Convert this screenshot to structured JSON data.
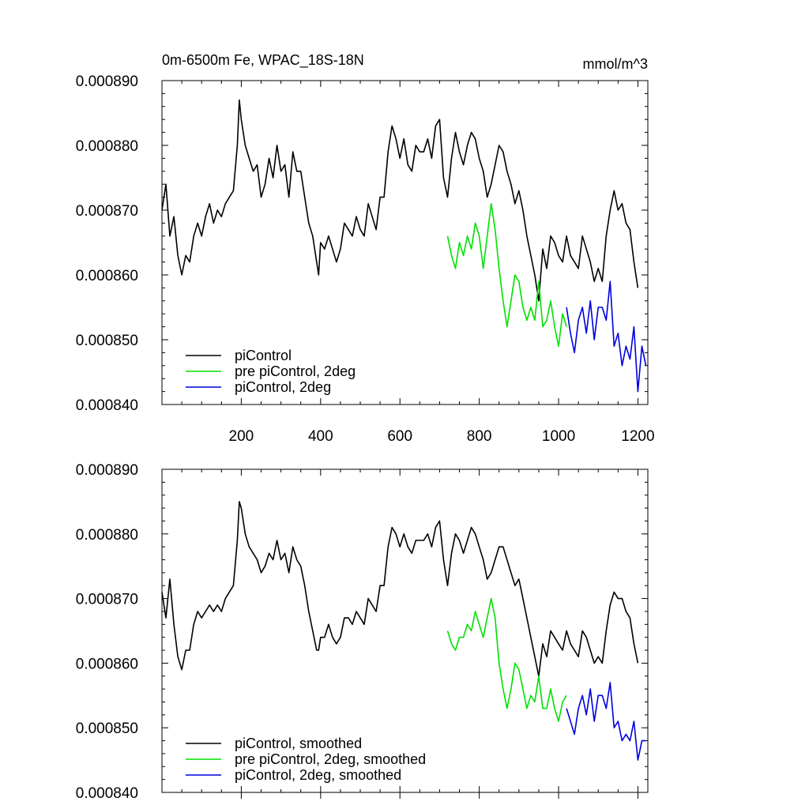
{
  "chart_data": [
    {
      "type": "line",
      "title": "0m-6500m Fe, WPAC_18S-18N",
      "units": "mmol/m^3",
      "xlim": [
        0,
        1225
      ],
      "ylim": [
        0.00084,
        0.00089
      ],
      "yticks": [
        "0.000840",
        "0.000850",
        "0.000860",
        "0.000870",
        "0.000880",
        "0.000890"
      ],
      "xticks": [
        "200",
        "400",
        "600",
        "800",
        "1000",
        "1200"
      ],
      "legend_position": "bottom-left",
      "series": [
        {
          "name": "piControl",
          "color": "#000000",
          "x": [
            0,
            10,
            20,
            30,
            40,
            50,
            60,
            70,
            80,
            90,
            100,
            110,
            120,
            130,
            140,
            150,
            160,
            170,
            180,
            190,
            195,
            200,
            210,
            220,
            230,
            240,
            250,
            260,
            270,
            280,
            290,
            300,
            310,
            320,
            330,
            340,
            350,
            360,
            370,
            380,
            390,
            395,
            400,
            410,
            420,
            430,
            440,
            450,
            460,
            470,
            480,
            490,
            500,
            510,
            520,
            530,
            540,
            550,
            560,
            570,
            580,
            590,
            600,
            610,
            620,
            630,
            640,
            650,
            660,
            670,
            680,
            690,
            700,
            710,
            720,
            730,
            740,
            750,
            760,
            770,
            780,
            790,
            800,
            810,
            820,
            830,
            840,
            850,
            860,
            870,
            880,
            890,
            900,
            910,
            920,
            930,
            940,
            950,
            960,
            970,
            980,
            990,
            1000,
            1010,
            1020,
            1030,
            1040,
            1050,
            1060,
            1070,
            1080,
            1090,
            1100,
            1110,
            1120,
            1130,
            1140,
            1150,
            1160,
            1170,
            1180,
            1190,
            1200
          ],
          "y": [
            0.00087,
            0.000874,
            0.000866,
            0.000869,
            0.000863,
            0.00086,
            0.000863,
            0.000862,
            0.000866,
            0.000868,
            0.000866,
            0.000869,
            0.000871,
            0.000868,
            0.00087,
            0.000869,
            0.000871,
            0.000872,
            0.000873,
            0.00088,
            0.000887,
            0.000884,
            0.00088,
            0.000878,
            0.000876,
            0.000877,
            0.000872,
            0.000874,
            0.000878,
            0.000875,
            0.00088,
            0.000876,
            0.000877,
            0.000872,
            0.000879,
            0.000876,
            0.000876,
            0.000872,
            0.000868,
            0.000866,
            0.000862,
            0.00086,
            0.000865,
            0.000864,
            0.000866,
            0.000864,
            0.000862,
            0.000864,
            0.000868,
            0.000867,
            0.000866,
            0.000869,
            0.000867,
            0.000866,
            0.000871,
            0.000869,
            0.000867,
            0.000872,
            0.000872,
            0.000879,
            0.000883,
            0.000881,
            0.000878,
            0.000881,
            0.000877,
            0.000876,
            0.00088,
            0.000879,
            0.000879,
            0.000881,
            0.000878,
            0.000883,
            0.000884,
            0.000875,
            0.000872,
            0.000878,
            0.000882,
            0.000879,
            0.000877,
            0.00088,
            0.000882,
            0.000881,
            0.000878,
            0.000876,
            0.000872,
            0.000874,
            0.000877,
            0.00088,
            0.000879,
            0.000876,
            0.000874,
            0.000871,
            0.000873,
            0.00087,
            0.000866,
            0.000863,
            0.00086,
            0.000856,
            0.000864,
            0.000861,
            0.000866,
            0.000865,
            0.000863,
            0.000862,
            0.000866,
            0.000863,
            0.000862,
            0.000861,
            0.000866,
            0.000864,
            0.000862,
            0.000859,
            0.000861,
            0.000859,
            0.000866,
            0.00087,
            0.000873,
            0.00087,
            0.000871,
            0.000868,
            0.000867,
            0.000862,
            0.000858
          ]
        },
        {
          "name": "pre piControl, 2deg",
          "color": "#00e000",
          "x": [
            720,
            730,
            740,
            750,
            760,
            770,
            780,
            790,
            800,
            810,
            820,
            830,
            840,
            850,
            860,
            870,
            880,
            890,
            900,
            910,
            920,
            930,
            940,
            950,
            960,
            970,
            980,
            990,
            1000,
            1010,
            1020
          ],
          "y": [
            0.000866,
            0.000863,
            0.000861,
            0.000865,
            0.000863,
            0.000866,
            0.000864,
            0.000868,
            0.000866,
            0.000861,
            0.000866,
            0.000871,
            0.000867,
            0.000861,
            0.000856,
            0.000852,
            0.000856,
            0.00086,
            0.000859,
            0.000855,
            0.000853,
            0.000855,
            0.000853,
            0.000859,
            0.000852,
            0.000853,
            0.000856,
            0.000852,
            0.000849,
            0.000854,
            0.000852
          ]
        },
        {
          "name": "piControl, 2deg",
          "color": "#0000e0",
          "x": [
            1020,
            1030,
            1040,
            1050,
            1060,
            1070,
            1080,
            1090,
            1100,
            1110,
            1120,
            1130,
            1140,
            1150,
            1160,
            1170,
            1180,
            1190,
            1200,
            1210,
            1220
          ],
          "y": [
            0.000855,
            0.000851,
            0.000848,
            0.000853,
            0.000855,
            0.000851,
            0.000856,
            0.00085,
            0.000855,
            0.000855,
            0.000853,
            0.000859,
            0.000849,
            0.000851,
            0.000846,
            0.000849,
            0.000847,
            0.000852,
            0.000842,
            0.000849,
            0.000846
          ]
        }
      ]
    },
    {
      "type": "line",
      "title": "",
      "xlim": [
        0,
        1225
      ],
      "ylim": [
        0.00084,
        0.00089
      ],
      "yticks": [
        "0.000840",
        "0.000850",
        "0.000860",
        "0.000870",
        "0.000880",
        "0.000890"
      ],
      "legend_position": "bottom-left",
      "series": [
        {
          "name": "piControl, smoothed",
          "color": "#000000",
          "x": [
            0,
            10,
            20,
            30,
            40,
            50,
            60,
            70,
            80,
            90,
            100,
            110,
            120,
            130,
            140,
            150,
            160,
            170,
            180,
            190,
            195,
            200,
            210,
            220,
            230,
            240,
            250,
            260,
            270,
            280,
            290,
            300,
            310,
            320,
            330,
            340,
            350,
            360,
            370,
            380,
            390,
            395,
            400,
            410,
            420,
            430,
            440,
            450,
            460,
            470,
            480,
            490,
            500,
            510,
            520,
            530,
            540,
            550,
            560,
            570,
            580,
            590,
            600,
            610,
            620,
            630,
            640,
            650,
            660,
            670,
            680,
            690,
            700,
            710,
            720,
            730,
            740,
            750,
            760,
            770,
            780,
            790,
            800,
            810,
            820,
            830,
            840,
            850,
            860,
            870,
            880,
            890,
            900,
            910,
            920,
            930,
            940,
            950,
            960,
            970,
            980,
            990,
            1000,
            1010,
            1020,
            1030,
            1040,
            1050,
            1060,
            1070,
            1080,
            1090,
            1100,
            1110,
            1120,
            1130,
            1140,
            1150,
            1160,
            1170,
            1180,
            1190,
            1200
          ],
          "y": [
            0.000871,
            0.000867,
            0.000873,
            0.000866,
            0.000861,
            0.000859,
            0.000862,
            0.000862,
            0.000866,
            0.000868,
            0.000867,
            0.000868,
            0.000869,
            0.000868,
            0.000869,
            0.000868,
            0.00087,
            0.000871,
            0.000872,
            0.000879,
            0.000885,
            0.000884,
            0.00088,
            0.000878,
            0.000877,
            0.000876,
            0.000874,
            0.000875,
            0.000877,
            0.000876,
            0.000879,
            0.000876,
            0.000877,
            0.000874,
            0.000878,
            0.000876,
            0.000875,
            0.000872,
            0.000868,
            0.000865,
            0.000862,
            0.000862,
            0.000864,
            0.000864,
            0.000866,
            0.000864,
            0.000863,
            0.000864,
            0.000867,
            0.000867,
            0.000866,
            0.000868,
            0.000867,
            0.000866,
            0.00087,
            0.000869,
            0.000868,
            0.000872,
            0.000872,
            0.000878,
            0.000881,
            0.00088,
            0.000878,
            0.00088,
            0.000878,
            0.000877,
            0.000879,
            0.000879,
            0.000879,
            0.00088,
            0.000878,
            0.000881,
            0.000882,
            0.000876,
            0.000872,
            0.000877,
            0.00088,
            0.000879,
            0.000877,
            0.000879,
            0.000881,
            0.00088,
            0.000878,
            0.000876,
            0.000873,
            0.000874,
            0.000876,
            0.000878,
            0.000878,
            0.000876,
            0.000874,
            0.000872,
            0.000873,
            0.00087,
            0.000867,
            0.000864,
            0.000861,
            0.000858,
            0.000863,
            0.000861,
            0.000865,
            0.000864,
            0.000863,
            0.000862,
            0.000865,
            0.000863,
            0.000862,
            0.000861,
            0.000865,
            0.000864,
            0.000862,
            0.00086,
            0.000861,
            0.00086,
            0.000865,
            0.000869,
            0.000871,
            0.00087,
            0.00087,
            0.000868,
            0.000867,
            0.000863,
            0.00086
          ]
        },
        {
          "name": "pre piControl, 2deg, smoothed",
          "color": "#00e000",
          "x": [
            720,
            730,
            740,
            750,
            760,
            770,
            780,
            790,
            800,
            810,
            820,
            830,
            840,
            850,
            860,
            870,
            880,
            890,
            900,
            910,
            920,
            930,
            940,
            950,
            960,
            970,
            980,
            990,
            1000,
            1010,
            1020
          ],
          "y": [
            0.000865,
            0.000863,
            0.000862,
            0.000864,
            0.000864,
            0.000866,
            0.000865,
            0.000868,
            0.000866,
            0.000864,
            0.000867,
            0.00087,
            0.000867,
            0.00086,
            0.000856,
            0.000853,
            0.000856,
            0.00086,
            0.000859,
            0.000856,
            0.000853,
            0.000855,
            0.000854,
            0.000858,
            0.000853,
            0.000853,
            0.000856,
            0.000853,
            0.000851,
            0.000854,
            0.000855
          ]
        },
        {
          "name": "piControl, 2deg, smoothed",
          "color": "#0000e0",
          "x": [
            1020,
            1030,
            1040,
            1050,
            1060,
            1070,
            1080,
            1090,
            1100,
            1110,
            1120,
            1130,
            1140,
            1150,
            1160,
            1170,
            1180,
            1190,
            1200,
            1210,
            1220
          ],
          "y": [
            0.000853,
            0.000851,
            0.000849,
            0.000853,
            0.000855,
            0.000852,
            0.000856,
            0.000851,
            0.000855,
            0.000855,
            0.000853,
            0.000857,
            0.00085,
            0.000851,
            0.000848,
            0.000849,
            0.000848,
            0.000851,
            0.000845,
            0.000848,
            0.000848
          ]
        }
      ]
    }
  ]
}
